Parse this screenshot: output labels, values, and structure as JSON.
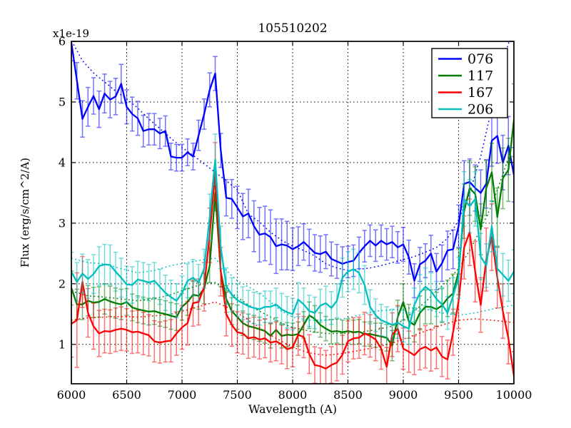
{
  "figure": {
    "title": "105510202",
    "xlabel": "Wavelength (A)",
    "ylabel": "Flux (erg/s/cm^2/A)",
    "offset_text": "x1e-19"
  },
  "chart_data": {
    "type": "line",
    "title": "105510202",
    "xlabel": "Wavelength (A)",
    "ylabel": "Flux (erg/s/cm^2/A)",
    "y_offset_factor": "x1e-19",
    "xlim": [
      6000,
      10000
    ],
    "ylim": [
      0.35,
      6.0
    ],
    "xticks": [
      6000,
      6500,
      7000,
      7500,
      8000,
      8500,
      9000,
      9500,
      10000
    ],
    "yticks": [
      1,
      2,
      3,
      4,
      5,
      6
    ],
    "grid": true,
    "grid_style": "dotted",
    "legend_position": "upper right",
    "legend": [
      {
        "label": "076",
        "color": "#0000ff"
      },
      {
        "label": "117",
        "color": "#007f00"
      },
      {
        "label": "167",
        "color": "#ff0000"
      },
      {
        "label": "206",
        "color": "#00bfbf"
      }
    ],
    "x_start": 6000,
    "x_step": 50,
    "series": [
      {
        "name": "076",
        "color": "#0000ff",
        "style": "solid",
        "errorbars": true,
        "values": [
          5.98,
          5.35,
          4.72,
          4.92,
          5.1,
          4.88,
          5.14,
          5.04,
          5.09,
          5.3,
          4.92,
          4.8,
          4.73,
          4.52,
          4.55,
          4.55,
          4.48,
          4.52,
          4.1,
          4.08,
          4.08,
          4.17,
          4.1,
          4.45,
          4.8,
          5.2,
          5.47,
          4.2,
          3.42,
          3.4,
          3.26,
          3.11,
          3.16,
          2.95,
          2.81,
          2.83,
          2.77,
          2.62,
          2.65,
          2.63,
          2.57,
          2.62,
          2.69,
          2.6,
          2.51,
          2.49,
          2.53,
          2.41,
          2.37,
          2.33,
          2.36,
          2.38,
          2.51,
          2.62,
          2.71,
          2.63,
          2.71,
          2.65,
          2.69,
          2.6,
          2.65,
          2.44,
          2.05,
          2.32,
          2.38,
          2.5,
          2.2,
          2.34,
          2.55,
          2.57,
          2.95,
          3.65,
          3.68,
          3.58,
          3.5,
          3.65,
          4.36,
          4.44,
          4.0,
          4.28,
          3.8
        ],
        "err": [
          0.3,
          0.3,
          0.3,
          0.32,
          0.3,
          0.3,
          0.32,
          0.3,
          0.3,
          0.32,
          0.28,
          0.28,
          0.28,
          0.26,
          0.26,
          0.26,
          0.25,
          0.25,
          0.22,
          0.22,
          0.22,
          0.22,
          0.22,
          0.25,
          0.25,
          0.28,
          0.28,
          0.28,
          0.3,
          0.32,
          0.35,
          0.38,
          0.4,
          0.42,
          0.45,
          0.45,
          0.45,
          0.45,
          0.42,
          0.4,
          0.35,
          0.32,
          0.3,
          0.3,
          0.3,
          0.3,
          0.28,
          0.28,
          0.28,
          0.28,
          0.26,
          0.26,
          0.26,
          0.26,
          0.26,
          0.26,
          0.26,
          0.26,
          0.26,
          0.26,
          0.28,
          0.28,
          0.28,
          0.28,
          0.28,
          0.3,
          0.3,
          0.3,
          0.32,
          0.32,
          0.35,
          0.38,
          0.38,
          0.38,
          0.38,
          0.4,
          0.42,
          0.45,
          0.45,
          0.48,
          0.45
        ]
      },
      {
        "name": "117",
        "color": "#007f00",
        "style": "solid",
        "errorbars": true,
        "values": [
          1.93,
          1.66,
          1.66,
          1.72,
          1.69,
          1.7,
          1.75,
          1.71,
          1.68,
          1.66,
          1.7,
          1.61,
          1.58,
          1.56,
          1.54,
          1.55,
          1.52,
          1.5,
          1.47,
          1.45,
          1.62,
          1.7,
          1.82,
          1.8,
          1.92,
          2.3,
          3.5,
          2.2,
          1.75,
          1.55,
          1.45,
          1.35,
          1.3,
          1.28,
          1.25,
          1.22,
          1.14,
          1.24,
          1.14,
          1.16,
          1.15,
          1.17,
          1.32,
          1.48,
          1.42,
          1.32,
          1.26,
          1.21,
          1.22,
          1.2,
          1.22,
          1.2,
          1.21,
          1.17,
          1.17,
          1.15,
          1.13,
          1.11,
          0.98,
          1.45,
          1.7,
          1.38,
          1.32,
          1.52,
          1.62,
          1.62,
          1.58,
          1.64,
          1.76,
          1.84,
          2.2,
          3.2,
          3.58,
          3.48,
          2.9,
          3.58,
          3.84,
          3.1,
          3.74,
          3.88,
          4.7
        ],
        "err": [
          0.28,
          0.25,
          0.25,
          0.25,
          0.25,
          0.25,
          0.25,
          0.25,
          0.25,
          0.25,
          0.22,
          0.22,
          0.22,
          0.22,
          0.22,
          0.22,
          0.22,
          0.22,
          0.22,
          0.22,
          0.22,
          0.22,
          0.22,
          0.22,
          0.25,
          0.28,
          0.3,
          0.25,
          0.22,
          0.22,
          0.2,
          0.2,
          0.2,
          0.2,
          0.2,
          0.2,
          0.2,
          0.2,
          0.2,
          0.2,
          0.2,
          0.2,
          0.22,
          0.22,
          0.22,
          0.2,
          0.2,
          0.2,
          0.2,
          0.2,
          0.2,
          0.2,
          0.2,
          0.2,
          0.2,
          0.2,
          0.22,
          0.22,
          0.25,
          0.28,
          0.3,
          0.28,
          0.28,
          0.28,
          0.28,
          0.28,
          0.28,
          0.28,
          0.3,
          0.32,
          0.38,
          0.45,
          0.45,
          0.45,
          0.42,
          0.45,
          0.48,
          0.48,
          0.5,
          0.52,
          0.6
        ]
      },
      {
        "name": "167",
        "color": "#ff0000",
        "style": "solid",
        "errorbars": true,
        "values": [
          1.34,
          1.4,
          2.03,
          1.52,
          1.3,
          1.18,
          1.22,
          1.21,
          1.24,
          1.26,
          1.24,
          1.2,
          1.21,
          1.18,
          1.15,
          1.05,
          1.03,
          1.05,
          1.06,
          1.18,
          1.28,
          1.35,
          1.68,
          1.7,
          1.95,
          2.8,
          3.85,
          2.2,
          1.5,
          1.32,
          1.2,
          1.18,
          1.1,
          1.12,
          1.08,
          1.1,
          1.03,
          1.05,
          1.0,
          0.92,
          0.95,
          1.16,
          1.12,
          0.84,
          0.66,
          0.64,
          0.6,
          0.66,
          0.7,
          0.83,
          1.05,
          1.1,
          1.11,
          1.18,
          1.14,
          1.08,
          0.93,
          0.63,
          1.16,
          1.26,
          0.93,
          0.88,
          0.82,
          0.92,
          0.96,
          0.9,
          0.95,
          0.8,
          0.75,
          1.2,
          1.71,
          2.6,
          2.85,
          2.2,
          1.65,
          2.4,
          2.77,
          2.1,
          1.55,
          1.1,
          0.48
        ],
        "err": [
          0.55,
          0.78,
          0.42,
          0.4,
          0.38,
          0.38,
          0.36,
          0.36,
          0.36,
          0.36,
          0.35,
          0.35,
          0.35,
          0.35,
          0.34,
          0.34,
          0.34,
          0.34,
          0.35,
          0.36,
          0.36,
          0.36,
          0.38,
          0.38,
          0.4,
          0.45,
          0.48,
          0.4,
          0.36,
          0.35,
          0.34,
          0.34,
          0.33,
          0.33,
          0.32,
          0.32,
          0.32,
          0.32,
          0.32,
          0.32,
          0.32,
          0.34,
          0.34,
          0.32,
          0.3,
          0.3,
          0.3,
          0.3,
          0.3,
          0.32,
          0.34,
          0.34,
          0.34,
          0.35,
          0.35,
          0.35,
          0.34,
          0.32,
          0.36,
          0.38,
          0.34,
          0.34,
          0.32,
          0.34,
          0.35,
          0.34,
          0.35,
          0.33,
          0.32,
          0.38,
          0.45,
          0.52,
          0.55,
          0.5,
          0.45,
          0.52,
          0.55,
          0.5,
          0.45,
          0.42,
          0.4
        ]
      },
      {
        "name": "206",
        "color": "#00bfbf",
        "style": "solid",
        "errorbars": true,
        "values": [
          2.2,
          2.03,
          2.17,
          2.08,
          2.16,
          2.29,
          2.32,
          2.31,
          2.2,
          2.1,
          1.99,
          1.98,
          2.07,
          2.05,
          2.02,
          2.05,
          1.95,
          1.85,
          1.78,
          1.72,
          1.85,
          2.05,
          2.1,
          2.02,
          2.25,
          3.1,
          4.05,
          2.6,
          1.96,
          1.82,
          1.73,
          1.68,
          1.63,
          1.6,
          1.58,
          1.62,
          1.62,
          1.66,
          1.58,
          1.53,
          1.5,
          1.74,
          1.66,
          1.55,
          1.52,
          1.64,
          1.68,
          1.6,
          1.72,
          2.1,
          2.2,
          2.24,
          2.18,
          1.98,
          1.62,
          1.48,
          1.4,
          1.36,
          1.32,
          1.36,
          1.3,
          1.26,
          1.65,
          1.85,
          1.95,
          1.88,
          1.75,
          1.66,
          1.52,
          1.8,
          2.1,
          3.4,
          3.28,
          3.4,
          2.45,
          2.3,
          2.95,
          2.25,
          2.15,
          2.05,
          2.2
        ],
        "err": [
          0.32,
          0.32,
          0.32,
          0.32,
          0.32,
          0.32,
          0.33,
          0.33,
          0.32,
          0.32,
          0.3,
          0.3,
          0.3,
          0.3,
          0.3,
          0.3,
          0.29,
          0.29,
          0.28,
          0.28,
          0.28,
          0.28,
          0.3,
          0.3,
          0.32,
          0.38,
          0.42,
          0.35,
          0.3,
          0.28,
          0.27,
          0.27,
          0.26,
          0.26,
          0.26,
          0.26,
          0.26,
          0.27,
          0.26,
          0.26,
          0.26,
          0.28,
          0.27,
          0.26,
          0.26,
          0.27,
          0.28,
          0.27,
          0.28,
          0.32,
          0.33,
          0.33,
          0.33,
          0.32,
          0.28,
          0.27,
          0.26,
          0.26,
          0.26,
          0.26,
          0.26,
          0.26,
          0.28,
          0.3,
          0.31,
          0.3,
          0.29,
          0.28,
          0.27,
          0.3,
          0.34,
          0.45,
          0.44,
          0.45,
          0.38,
          0.36,
          0.42,
          0.36,
          0.35,
          0.34,
          0.36
        ]
      },
      {
        "name": "076-template",
        "color": "#0000ff",
        "style": "dotted",
        "x": [
          6020,
          6100,
          6200,
          6300,
          6400,
          6500,
          6600,
          6700,
          6800,
          6900,
          7000,
          7100,
          7200,
          7300,
          7400,
          7500,
          7600,
          7700,
          7800,
          7900,
          8000,
          8100,
          8200,
          8300,
          8400,
          8500,
          8600,
          8700,
          8800,
          8900,
          9000,
          9100,
          9200,
          9300,
          9400,
          9500,
          9600,
          9700,
          9800,
          9900,
          9960
        ],
        "y": [
          5.95,
          5.68,
          5.48,
          5.33,
          5.18,
          5.05,
          4.9,
          4.72,
          4.56,
          4.4,
          4.25,
          4.12,
          3.98,
          3.84,
          3.7,
          3.55,
          3.15,
          3.02,
          2.85,
          2.72,
          2.62,
          2.55,
          2.46,
          2.33,
          2.26,
          2.22,
          2.24,
          2.26,
          2.3,
          2.35,
          2.4,
          2.45,
          2.52,
          2.6,
          2.75,
          3.05,
          3.5,
          4.1,
          4.9,
          5.65,
          6.02
        ]
      },
      {
        "name": "117-template",
        "color": "#007f00",
        "style": "dotted",
        "x": [
          6000,
          6150,
          6300,
          6450,
          6600,
          6750,
          6900,
          7050,
          7200,
          7300,
          7400,
          7500,
          7600,
          7700,
          7800,
          7900,
          8000,
          8150,
          8300,
          8450,
          8600,
          8750,
          8900,
          9000,
          9100,
          9200,
          9300,
          9400,
          9500,
          9600,
          9700,
          9800,
          9900,
          9980
        ],
        "y": [
          1.88,
          1.8,
          1.78,
          1.75,
          1.72,
          1.75,
          1.82,
          1.92,
          2.0,
          2.02,
          1.9,
          1.78,
          1.65,
          1.55,
          1.45,
          1.35,
          1.28,
          1.22,
          1.18,
          1.18,
          1.2,
          1.24,
          1.3,
          1.4,
          1.55,
          1.7,
          1.88,
          2.05,
          2.25,
          2.55,
          2.9,
          3.3,
          3.8,
          4.25
        ]
      },
      {
        "name": "167-template",
        "color": "#ff0000",
        "style": "dotted",
        "x": [
          6000,
          6150,
          6300,
          6450,
          6600,
          6750,
          6900,
          7050,
          7200,
          7300,
          7400,
          7500,
          7600,
          7700,
          7800,
          7900,
          8000,
          8150,
          8300,
          8450,
          8600,
          8750,
          8900,
          9050,
          9200,
          9350,
          9500,
          9650,
          9800,
          10000
        ],
        "y": [
          1.4,
          1.44,
          1.45,
          1.46,
          1.45,
          1.47,
          1.5,
          1.57,
          1.65,
          1.7,
          1.62,
          1.52,
          1.4,
          1.28,
          1.15,
          1.05,
          0.95,
          0.86,
          0.82,
          0.85,
          0.9,
          0.95,
          1.02,
          1.12,
          1.22,
          1.32,
          1.4,
          1.42,
          1.4,
          1.36
        ]
      },
      {
        "name": "206-template",
        "color": "#00bfbf",
        "style": "dotted",
        "x": [
          6000,
          6150,
          6300,
          6450,
          6600,
          6750,
          6900,
          7050,
          7200,
          7300,
          7400,
          7500,
          7600,
          7700,
          7800,
          7900,
          8000,
          8150,
          8300,
          8450,
          8600,
          8750,
          8900,
          9050,
          9200,
          9350,
          9500,
          9650,
          9800,
          10000
        ],
        "y": [
          2.42,
          2.35,
          2.33,
          2.25,
          2.18,
          2.22,
          2.3,
          2.35,
          2.4,
          2.42,
          2.22,
          2.05,
          1.95,
          1.85,
          1.7,
          1.55,
          1.45,
          1.4,
          1.4,
          1.42,
          1.48,
          1.55,
          1.57,
          1.6,
          1.58,
          1.52,
          1.48,
          1.52,
          1.58,
          1.65
        ]
      }
    ]
  }
}
